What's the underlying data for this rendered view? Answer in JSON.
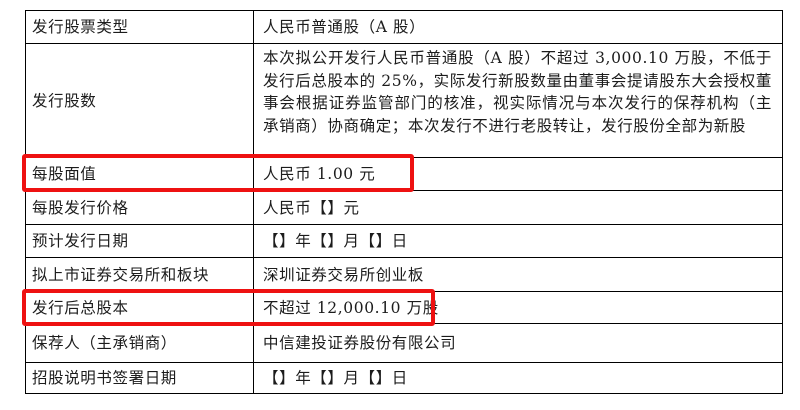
{
  "table": {
    "rows": [
      {
        "label": "发行股票类型",
        "value": "人民币普通股（A 股）"
      },
      {
        "label": "发行股数",
        "value": "本次拟公开发行人民币普通股（A 股）不超过 3,000.10 万股，不低于发行后总股本的 25%，实际发行新股数量由董事会提请股东大会授权董事会根据证券监管部门的核准，视实际情况与本次发行的保荐机构（主承销商）协商确定；本次发行不进行老股转让，发行股份全部为新股"
      },
      {
        "label": "每股面值",
        "value": "人民币 1.00 元"
      },
      {
        "label": "每股发行价格",
        "value": "人民币【】元"
      },
      {
        "label": "预计发行日期",
        "value": "【】年【】月【】日"
      },
      {
        "label": "拟上市证券交易所和板块",
        "value": "深圳证券交易所创业板"
      },
      {
        "label": "发行后总股本",
        "value": "不超过 12,000.10 万股"
      },
      {
        "label": "保荐人（主承销商）",
        "value": "中信建投证券股份有限公司"
      },
      {
        "label": "招股说明书签署日期",
        "value": "【】年【】月【】日"
      }
    ]
  },
  "annotations": {
    "highlight_color": "#ee1111",
    "highlighted_rows": [
      "每股面值",
      "发行后总股本"
    ]
  },
  "colors": {
    "background": "#ffffff",
    "border": "#000000",
    "text": "#1c1c1c"
  }
}
